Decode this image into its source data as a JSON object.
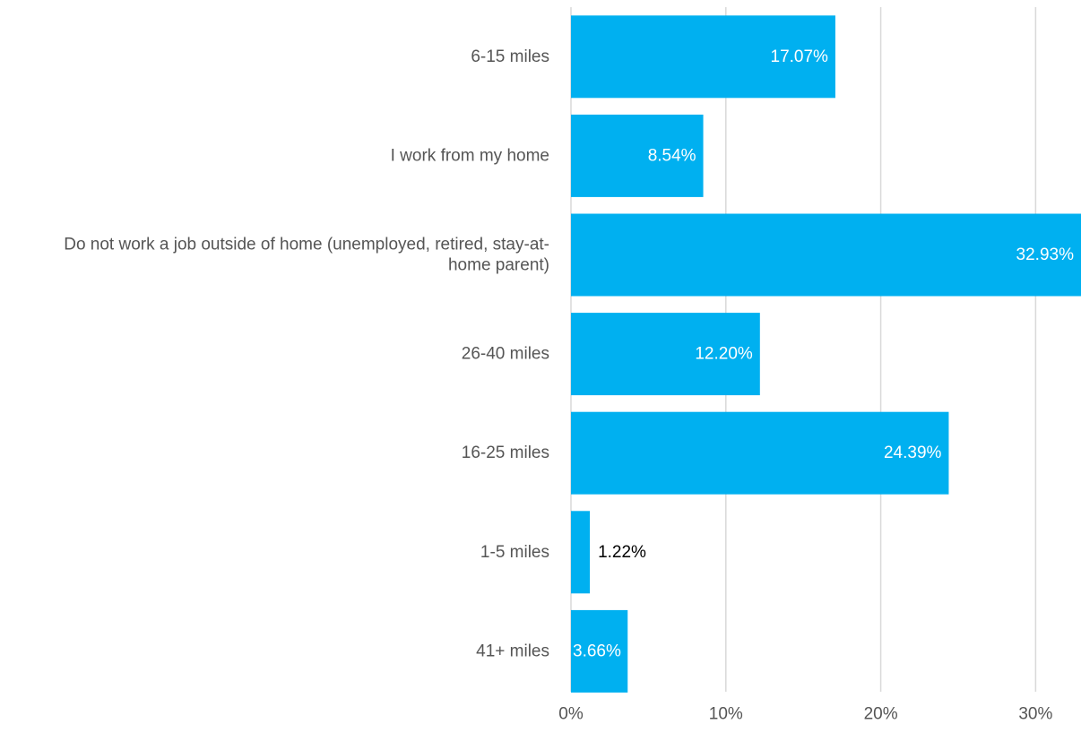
{
  "chart_data": {
    "type": "bar",
    "orientation": "horizontal",
    "categories": [
      "6-15 miles",
      "I work from my home",
      "Do not work a job outside of home (unemployed, retired, stay-at-home parent)",
      "26-40 miles",
      "16-25 miles",
      "1-5 miles",
      "41+ miles"
    ],
    "category_label_lines": [
      [
        "6-15 miles"
      ],
      [
        "I work from my home"
      ],
      [
        "Do not work a job outside of home (unemployed, retired, stay-at-",
        "home parent)"
      ],
      [
        "26-40 miles"
      ],
      [
        "16-25 miles"
      ],
      [
        "1-5 miles"
      ],
      [
        "41+ miles"
      ]
    ],
    "values": [
      17.07,
      8.54,
      32.93,
      12.2,
      24.39,
      1.22,
      3.66
    ],
    "data_labels": [
      "17.07%",
      "8.54%",
      "32.93%",
      "12.20%",
      "24.39%",
      "1.22%",
      "3.66%"
    ],
    "x_ticks": [
      0,
      10,
      20,
      30
    ],
    "x_tick_labels": [
      "0%",
      "10%",
      "20%",
      "30%"
    ],
    "xlim": [
      0,
      32.93
    ],
    "grid": true,
    "legend": "none",
    "title": "",
    "xlabel": "",
    "ylabel": "",
    "colors": {
      "bar": "#00b0f0",
      "grid": "#d9d9d9",
      "label_inside": "#ffffff",
      "label_outside": "#000000",
      "text": "#555555"
    }
  }
}
